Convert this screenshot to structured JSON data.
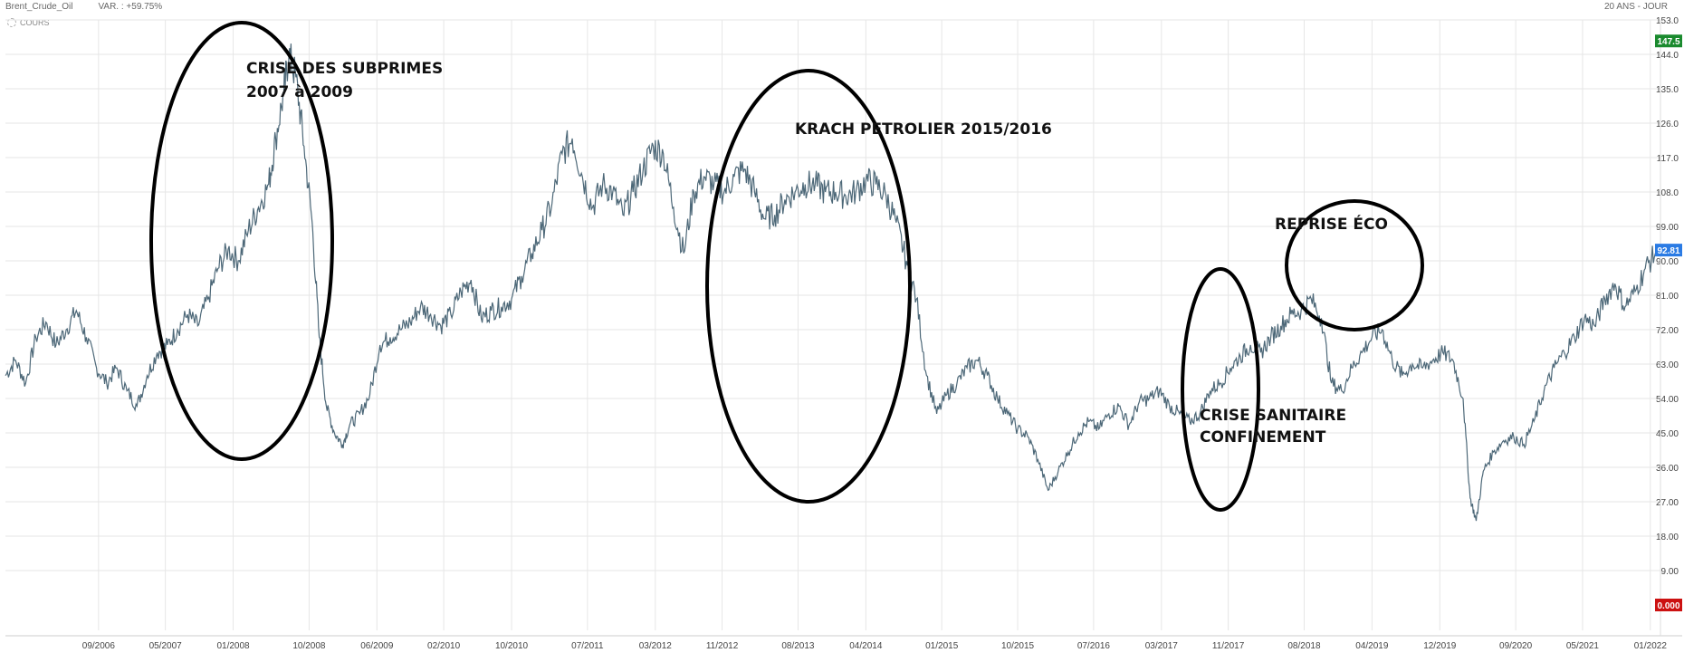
{
  "header": {
    "instrument": "Brent_Crude_Oil",
    "variation": "VAR. : +59.75%",
    "period": "20 ANS - JOUR"
  },
  "series_label": "COURS",
  "chart_data": {
    "type": "line",
    "title": "",
    "xlabel": "",
    "ylabel": "",
    "ylim": [
      0,
      153
    ],
    "y_ticks": [
      153.0,
      147.5,
      144.0,
      135.0,
      126.0,
      117.0,
      108.0,
      99.0,
      90.0,
      81.0,
      72.0,
      63.0,
      54.0,
      45.0,
      36.0,
      27.0,
      18.0,
      9.0,
      0.0
    ],
    "y_tick_labels": [
      "153.0",
      "147.5",
      "144.0",
      "135.0",
      "126.0",
      "117.0",
      "108.0",
      "99.00",
      "90.00",
      "81.00",
      "72.00",
      "63.00",
      "54.00",
      "45.00",
      "36.00",
      "27.00",
      "18.00",
      "9.00",
      "0.000"
    ],
    "y_badges": [
      {
        "label": "147.5",
        "value": 147.5,
        "color": "#1a8a2e"
      },
      {
        "label": "92.81",
        "value": 92.81,
        "color": "#2a7be4"
      },
      {
        "label": "0.000",
        "value": 0.0,
        "color": "#cc1111"
      }
    ],
    "x_tick_labels": [
      "09/2006",
      "05/2007",
      "01/2008",
      "10/2008",
      "06/2009",
      "02/2010",
      "10/2010",
      "07/2011",
      "03/2012",
      "11/2012",
      "08/2013",
      "04/2014",
      "01/2015",
      "10/2015",
      "07/2016",
      "03/2017",
      "11/2017",
      "08/2018",
      "04/2019",
      "12/2019",
      "09/2020",
      "05/2021",
      "01/2022"
    ],
    "x_tick_dates": [
      2006.67,
      2007.33,
      2008.0,
      2008.75,
      2009.42,
      2010.08,
      2010.75,
      2011.5,
      2012.17,
      2012.83,
      2013.58,
      2014.25,
      2015.0,
      2015.75,
      2016.5,
      2017.17,
      2017.83,
      2018.58,
      2019.25,
      2019.92,
      2020.67,
      2021.33,
      2022.0
    ],
    "x_range": [
      2005.75,
      2022.1
    ],
    "grid": true,
    "line_color": "#4d6878",
    "series": [
      {
        "x": [
          2005.75,
          2005.85,
          2005.95,
          2006.05,
          2006.15,
          2006.25,
          2006.35,
          2006.45,
          2006.55,
          2006.65,
          2006.75,
          2006.85,
          2006.95,
          2007.05,
          2007.15,
          2007.25,
          2007.35,
          2007.45,
          2007.55,
          2007.65,
          2007.75,
          2007.85,
          2007.95,
          2008.05,
          2008.15,
          2008.25,
          2008.35,
          2008.42,
          2008.5,
          2008.55,
          2008.62,
          2008.7,
          2008.78,
          2008.85,
          2008.92,
          2009.0,
          2009.08,
          2009.15,
          2009.25,
          2009.35,
          2009.45,
          2009.55,
          2009.65,
          2009.75,
          2009.85,
          2009.95,
          2010.05,
          2010.15,
          2010.25,
          2010.35,
          2010.45,
          2010.55,
          2010.65,
          2010.75,
          2010.85,
          2010.95,
          2011.05,
          2011.15,
          2011.25,
          2011.35,
          2011.45,
          2011.55,
          2011.65,
          2011.75,
          2011.85,
          2011.95,
          2012.05,
          2012.15,
          2012.25,
          2012.35,
          2012.45,
          2012.55,
          2012.65,
          2012.75,
          2012.85,
          2012.95,
          2013.05,
          2013.15,
          2013.25,
          2013.35,
          2013.45,
          2013.55,
          2013.65,
          2013.75,
          2013.85,
          2013.95,
          2014.05,
          2014.15,
          2014.25,
          2014.35,
          2014.45,
          2014.55,
          2014.65,
          2014.75,
          2014.85,
          2014.95,
          2015.05,
          2015.15,
          2015.25,
          2015.35,
          2015.45,
          2015.55,
          2015.65,
          2015.75,
          2015.85,
          2015.95,
          2016.05,
          2016.15,
          2016.25,
          2016.35,
          2016.45,
          2016.55,
          2016.65,
          2016.75,
          2016.85,
          2016.95,
          2017.05,
          2017.15,
          2017.25,
          2017.35,
          2017.45,
          2017.55,
          2017.65,
          2017.75,
          2017.85,
          2017.95,
          2018.05,
          2018.15,
          2018.25,
          2018.35,
          2018.45,
          2018.55,
          2018.65,
          2018.75,
          2018.85,
          2018.95,
          2019.05,
          2019.15,
          2019.25,
          2019.35,
          2019.45,
          2019.55,
          2019.65,
          2019.75,
          2019.85,
          2019.95,
          2020.05,
          2020.15,
          2020.22,
          2020.28,
          2020.35,
          2020.45,
          2020.55,
          2020.65,
          2020.75,
          2020.85,
          2020.95,
          2021.05,
          2021.15,
          2021.25,
          2021.35,
          2021.45,
          2021.55,
          2021.65,
          2021.75,
          2021.85,
          2021.95,
          2022.05
        ],
        "y": [
          60,
          64,
          58,
          70,
          74,
          68,
          72,
          77,
          70,
          62,
          58,
          62,
          56,
          52,
          60,
          66,
          68,
          72,
          76,
          73,
          80,
          88,
          93,
          90,
          98,
          104,
          110,
          122,
          134,
          144,
          138,
          120,
          100,
          70,
          52,
          45,
          42,
          47,
          50,
          55,
          68,
          70,
          72,
          74,
          78,
          76,
          73,
          76,
          82,
          85,
          75,
          77,
          78,
          80,
          86,
          92,
          98,
          105,
          118,
          122,
          112,
          104,
          110,
          108,
          102,
          108,
          114,
          120,
          118,
          104,
          92,
          108,
          112,
          110,
          108,
          112,
          114,
          108,
          101,
          102,
          106,
          108,
          110,
          110,
          108,
          108,
          107,
          108,
          111,
          110,
          107,
          100,
          90,
          80,
          60,
          50,
          55,
          58,
          62,
          64,
          60,
          54,
          50,
          46,
          44,
          38,
          30,
          35,
          40,
          45,
          48,
          46,
          50,
          52,
          47,
          53,
          54,
          56,
          52,
          50,
          48,
          50,
          56,
          58,
          62,
          65,
          68,
          66,
          70,
          73,
          76,
          77,
          80,
          75,
          58,
          56,
          62,
          66,
          70,
          72,
          64,
          60,
          63,
          62,
          64,
          66,
          64,
          54,
          28,
          22,
          35,
          40,
          43,
          44,
          42,
          48,
          56,
          62,
          66,
          70,
          75,
          73,
          80,
          84,
          78,
          82,
          88,
          92
        ]
      }
    ],
    "annotations": [
      {
        "lines": [
          "CRISE DES SUBPRIMES",
          "2007  à  2009"
        ]
      },
      {
        "lines": [
          "KRACH PETROLIER 2015/2016"
        ]
      },
      {
        "lines": [
          "CRISE SANITAIRE",
          "CONFINEMENT"
        ]
      },
      {
        "lines": [
          "REPRISE ÉCO"
        ]
      }
    ]
  }
}
